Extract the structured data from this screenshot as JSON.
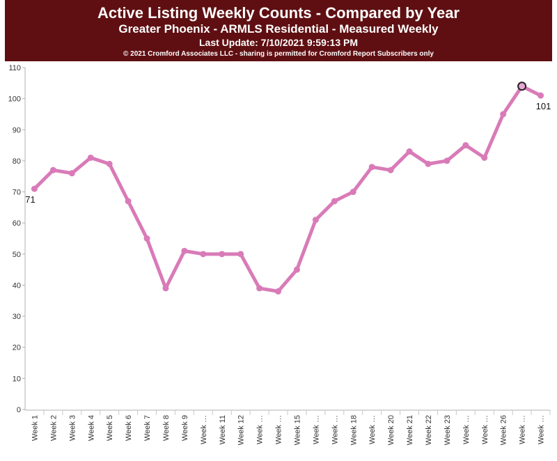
{
  "header": {
    "title": "Active Listing Weekly Counts - Compared by Year",
    "subtitle": "Greater Phoenix - ARMLS Residential - Measured Weekly",
    "last_update": "Last Update: 7/10/2021 9:59:13 PM",
    "copyright": "© 2021 Cromford Associates LLC - sharing is permitted for Cromford Report Subscribers only"
  },
  "colors": {
    "header_bg": "#5f0f12",
    "series": "#d97bb8",
    "highlight": "#e7a6d4"
  },
  "chart_data": {
    "type": "line",
    "categories": [
      "Week 1",
      "Week 2",
      "Week 3",
      "Week 4",
      "Week 5",
      "Week 6",
      "Week 7",
      "Week 8",
      "Week 9",
      "Week …",
      "Week 11",
      "Week 12",
      "Week …",
      "Week …",
      "Week 15",
      "Week …",
      "Week …",
      "Week 18",
      "Week …",
      "Week 20",
      "Week 21",
      "Week 22",
      "Week 23",
      "Week …",
      "Week …",
      "Week 26",
      "Week …",
      "Week …"
    ],
    "values": [
      71,
      77,
      76,
      81,
      79,
      67,
      55,
      39,
      51,
      50,
      50,
      50,
      39,
      38,
      45,
      61,
      67,
      70,
      78,
      77,
      83,
      79,
      80,
      85,
      81,
      95,
      104,
      101
    ],
    "ylim": [
      0,
      110
    ],
    "yticks": [
      0,
      10,
      20,
      30,
      40,
      50,
      60,
      70,
      80,
      90,
      100,
      110
    ],
    "point_labels": [
      {
        "index": 0,
        "text": "71"
      },
      {
        "index": 27,
        "text": "101"
      }
    ],
    "highlight_index": 26,
    "grid": false
  }
}
